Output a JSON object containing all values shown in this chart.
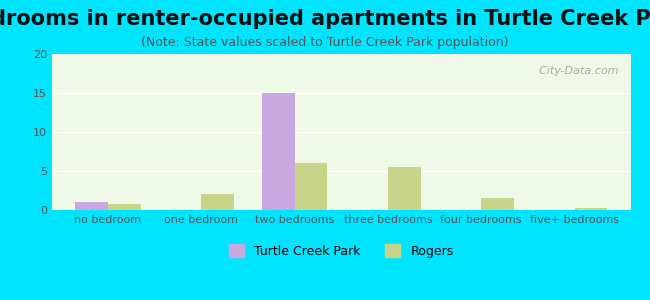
{
  "title": "Bedrooms in renter-occupied apartments in Turtle Creek Park",
  "subtitle": "(Note: State values scaled to Turtle Creek Park population)",
  "categories": [
    "no bedroom",
    "one bedroom",
    "two bedrooms",
    "three bedrooms",
    "four bedrooms",
    "five+ bedrooms"
  ],
  "turtle_creek_park": [
    1,
    0,
    15,
    0,
    0,
    0
  ],
  "rogers": [
    0.8,
    2,
    6,
    5.5,
    1.5,
    0.2
  ],
  "tcp_color": "#c9a8e0",
  "rogers_color": "#c8d48a",
  "bg_outer": "#00e5ff",
  "bg_chart": "#f0f8e8",
  "ylim": [
    0,
    20
  ],
  "yticks": [
    0,
    5,
    10,
    15,
    20
  ],
  "bar_width": 0.35,
  "title_fontsize": 15,
  "subtitle_fontsize": 9,
  "tick_fontsize": 8,
  "legend_fontsize": 9
}
